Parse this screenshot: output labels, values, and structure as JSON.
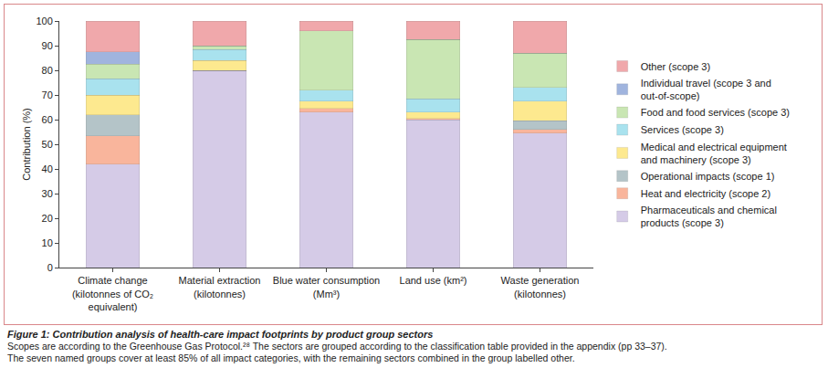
{
  "chart_data": {
    "type": "bar",
    "stacked": true,
    "title": "Figure 1: Contribution analysis of health-care impact footprints by product group sectors",
    "annotations": [
      "Scopes are according to the Greenhouse Gas Protocol.²⁸ The sectors are grouped according to the classification table provided in the appendix (pp 33–37).",
      "The seven named groups cover at least 85% of all impact categories, with the remaining sectors combined in the group labelled other."
    ],
    "y_label": "Contribution (%)",
    "categories": [
      "Climate change (kilotonnes of CO₂ equivalent)",
      "Material extraction (kilotonnes)",
      "Blue water consumption (Mm³)",
      "Land use (km²)",
      "Waste generation (kilotonnes)"
    ],
    "ylim": [
      0,
      100
    ],
    "yticks": [
      0,
      10,
      20,
      30,
      40,
      50,
      60,
      70,
      80,
      90,
      100
    ],
    "grid": false,
    "legend": "right",
    "series": [
      {
        "name": "Pharmaceuticals and chemical products (scope 3)",
        "color": "#d5cbe7",
        "values": [
          42,
          80,
          63,
          60,
          54.5
        ]
      },
      {
        "name": "Heat and electricity (scope 2)",
        "color": "#f9b59c",
        "values": [
          11.5,
          0,
          1.5,
          0.5,
          1.5
        ]
      },
      {
        "name": "Operational impacts (scope 1)",
        "color": "#b4c4c8",
        "values": [
          8.5,
          0,
          0,
          0,
          3.5
        ]
      },
      {
        "name": "Medical and electrical equipment and machinery (scope 3)",
        "color": "#fde98f",
        "values": [
          8,
          4,
          3,
          2.5,
          8
        ]
      },
      {
        "name": "Services (scope 3)",
        "color": "#a9e2ee",
        "values": [
          6.5,
          4.5,
          4.5,
          5.5,
          5.5
        ]
      },
      {
        "name": "Food and food services (scope 3)",
        "color": "#c9e6b3",
        "values": [
          6,
          1.5,
          24,
          24,
          14
        ]
      },
      {
        "name": "Individual travel (scope 3 and out-of-scope)",
        "color": "#a0b4de",
        "values": [
          5,
          0,
          0,
          0,
          0
        ]
      },
      {
        "name": "Other (scope 3)",
        "color": "#f0a8ab",
        "values": [
          12.5,
          10,
          4,
          7.5,
          13
        ]
      }
    ]
  }
}
